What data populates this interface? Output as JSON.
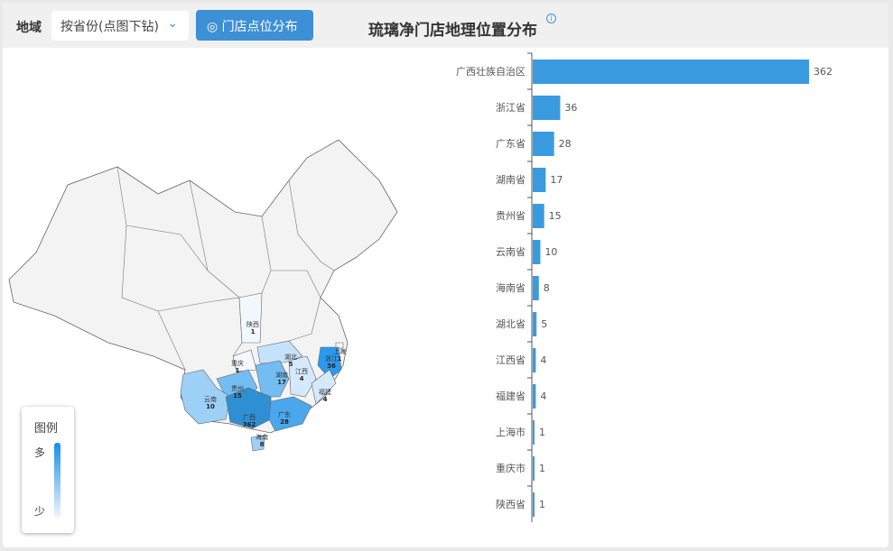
{
  "header": {
    "region_label": "地域",
    "region_select": "按省份(点图下钻)",
    "store_button": "门店点位分布",
    "title": "琉璃净门店地理位置分布",
    "info_icon": "info-icon"
  },
  "legend": {
    "title": "图例",
    "high": "多",
    "low": "少",
    "colors": [
      "#1a8ee6",
      "#f2f8fe"
    ]
  },
  "map_labels": [
    {
      "name": "陕西",
      "value": "1"
    },
    {
      "name": "湖北",
      "value": "5"
    },
    {
      "name": "上海",
      "value": "1"
    },
    {
      "name": "浙江",
      "value": "36"
    },
    {
      "name": "重庆",
      "value": "1"
    },
    {
      "name": "湖南",
      "value": "17"
    },
    {
      "name": "江西",
      "value": "4"
    },
    {
      "name": "贵州",
      "value": "15"
    },
    {
      "name": "福建",
      "value": "4"
    },
    {
      "name": "云南",
      "value": "10"
    },
    {
      "name": "广西",
      "value": "362"
    },
    {
      "name": "广东",
      "value": "28"
    },
    {
      "name": "海南",
      "value": "8"
    }
  ],
  "chart_data": {
    "type": "bar",
    "orientation": "horizontal",
    "categories": [
      "广西壮族自治区",
      "浙江省",
      "广东省",
      "湖南省",
      "贵州省",
      "云南省",
      "海南省",
      "湖北省",
      "江西省",
      "福建省",
      "上海市",
      "重庆市",
      "陕西省"
    ],
    "values": [
      362,
      36,
      28,
      17,
      15,
      10,
      8,
      5,
      4,
      4,
      1,
      1,
      1
    ],
    "bar_color": "#3a9ae0",
    "grid": false
  }
}
